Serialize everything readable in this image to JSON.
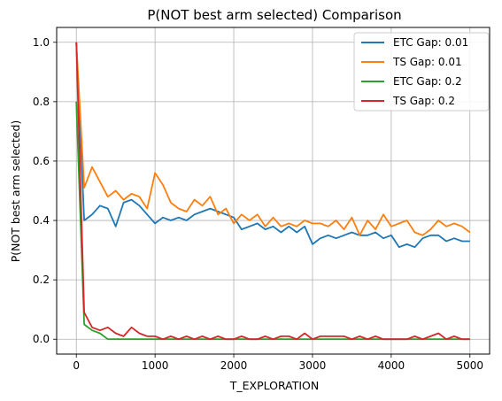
{
  "chart_data": {
    "type": "line",
    "title": "P(NOT best arm selected) Comparison",
    "xlabel": "T_EXPLORATION",
    "ylabel": "P(NOT best arm selected)",
    "xlim": [
      -250,
      5250
    ],
    "ylim": [
      -0.05,
      1.05
    ],
    "xticks": [
      0,
      1000,
      2000,
      3000,
      4000,
      5000
    ],
    "yticks": [
      0.0,
      0.2,
      0.4,
      0.6,
      0.8,
      1.0
    ],
    "xtick_labels": [
      "0",
      "1000",
      "2000",
      "3000",
      "4000",
      "5000"
    ],
    "ytick_labels": [
      "0.0",
      "0.2",
      "0.4",
      "0.6",
      "0.8",
      "1.0"
    ],
    "grid": true,
    "legend_position": "top-right",
    "series": [
      {
        "name": "ETC Gap: 0.01",
        "color": "#1f77b4",
        "x": [
          0,
          100,
          200,
          300,
          400,
          500,
          600,
          700,
          800,
          900,
          1000,
          1100,
          1200,
          1300,
          1400,
          1500,
          1600,
          1700,
          1800,
          1900,
          2000,
          2100,
          2200,
          2300,
          2400,
          2500,
          2600,
          2700,
          2800,
          2900,
          3000,
          3100,
          3200,
          3300,
          3400,
          3500,
          3600,
          3700,
          3800,
          3900,
          4000,
          4100,
          4200,
          4300,
          4400,
          4500,
          4600,
          4700,
          4800,
          4900,
          5000
        ],
        "y": [
          1.0,
          0.4,
          0.42,
          0.45,
          0.44,
          0.38,
          0.46,
          0.47,
          0.45,
          0.42,
          0.39,
          0.41,
          0.4,
          0.41,
          0.4,
          0.42,
          0.43,
          0.44,
          0.43,
          0.42,
          0.41,
          0.37,
          0.38,
          0.39,
          0.37,
          0.38,
          0.36,
          0.38,
          0.36,
          0.38,
          0.32,
          0.34,
          0.35,
          0.34,
          0.35,
          0.36,
          0.35,
          0.35,
          0.36,
          0.34,
          0.35,
          0.31,
          0.32,
          0.31,
          0.34,
          0.35,
          0.35,
          0.33,
          0.34,
          0.33,
          0.33
        ]
      },
      {
        "name": "TS Gap: 0.01",
        "color": "#ff7f0e",
        "x": [
          0,
          100,
          200,
          300,
          400,
          500,
          600,
          700,
          800,
          900,
          1000,
          1100,
          1200,
          1300,
          1400,
          1500,
          1600,
          1700,
          1800,
          1900,
          2000,
          2100,
          2200,
          2300,
          2400,
          2500,
          2600,
          2700,
          2800,
          2900,
          3000,
          3100,
          3200,
          3300,
          3400,
          3500,
          3600,
          3700,
          3800,
          3900,
          4000,
          4100,
          4200,
          4300,
          4400,
          4500,
          4600,
          4700,
          4800,
          4900,
          5000
        ],
        "y": [
          1.0,
          0.51,
          0.58,
          0.53,
          0.48,
          0.5,
          0.47,
          0.49,
          0.48,
          0.44,
          0.56,
          0.52,
          0.46,
          0.44,
          0.43,
          0.47,
          0.45,
          0.48,
          0.42,
          0.44,
          0.39,
          0.42,
          0.4,
          0.42,
          0.38,
          0.41,
          0.38,
          0.39,
          0.38,
          0.4,
          0.39,
          0.39,
          0.38,
          0.4,
          0.37,
          0.41,
          0.35,
          0.4,
          0.37,
          0.42,
          0.38,
          0.39,
          0.4,
          0.36,
          0.35,
          0.37,
          0.4,
          0.38,
          0.39,
          0.38,
          0.36
        ]
      },
      {
        "name": "ETC Gap: 0.2",
        "color": "#2ca02c",
        "x": [
          0,
          100,
          200,
          300,
          400,
          500,
          600,
          700,
          800,
          900,
          1000,
          1500,
          2000,
          2500,
          3000,
          3500,
          4000,
          4500,
          5000
        ],
        "y": [
          0.8,
          0.05,
          0.03,
          0.02,
          0.0,
          0.0,
          0.0,
          0.0,
          0.0,
          0.0,
          0.0,
          0.0,
          0.0,
          0.0,
          0.0,
          0.0,
          0.0,
          0.0,
          0.0
        ]
      },
      {
        "name": "TS Gap: 0.2",
        "color": "#d62728",
        "x": [
          0,
          100,
          200,
          300,
          400,
          500,
          600,
          700,
          800,
          900,
          1000,
          1100,
          1200,
          1300,
          1400,
          1500,
          1600,
          1700,
          1800,
          1900,
          2000,
          2100,
          2200,
          2300,
          2400,
          2500,
          2600,
          2700,
          2800,
          2900,
          3000,
          3100,
          3200,
          3300,
          3400,
          3500,
          3600,
          3700,
          3800,
          3900,
          4000,
          4100,
          4200,
          4300,
          4400,
          4500,
          4600,
          4700,
          4800,
          4900,
          5000
        ],
        "y": [
          1.0,
          0.09,
          0.04,
          0.03,
          0.04,
          0.02,
          0.01,
          0.04,
          0.02,
          0.01,
          0.01,
          0.0,
          0.01,
          0.0,
          0.01,
          0.0,
          0.01,
          0.0,
          0.01,
          0.0,
          0.0,
          0.01,
          0.0,
          0.0,
          0.01,
          0.0,
          0.01,
          0.01,
          0.0,
          0.02,
          0.0,
          0.01,
          0.01,
          0.01,
          0.01,
          0.0,
          0.01,
          0.0,
          0.01,
          0.0,
          0.0,
          0.0,
          0.0,
          0.01,
          0.0,
          0.01,
          0.02,
          0.0,
          0.01,
          0.0,
          0.0
        ]
      }
    ]
  }
}
